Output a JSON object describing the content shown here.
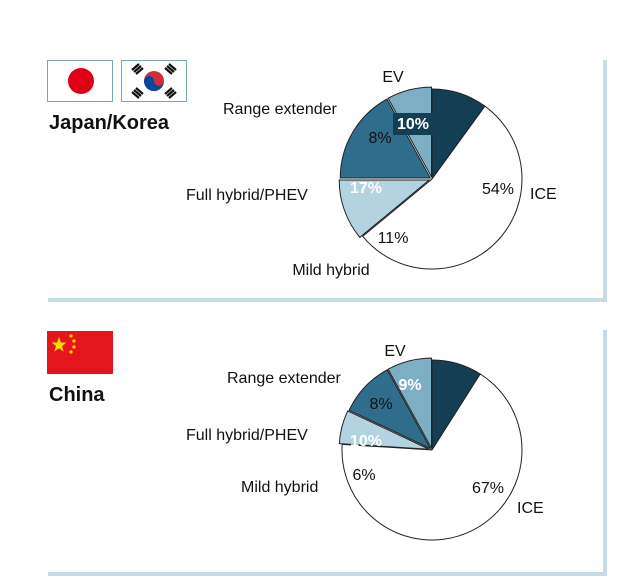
{
  "colors": {
    "ICE": "#ffffff",
    "Mild hybrid": "#b3d3e0",
    "Full hybrid/PHEV": "#2f6d8c",
    "Range extender": "#7eaec4",
    "EV": "#133e54",
    "frame": "#c5dbe6"
  },
  "chart_data": [
    {
      "type": "pie",
      "region": "Japan/Korea",
      "flags": [
        "japan-flag-icon",
        "korea-flag-icon"
      ],
      "slices": [
        {
          "label": "EV",
          "value": 10,
          "pct_label": "10%"
        },
        {
          "label": "ICE",
          "value": 54,
          "pct_label": "54%"
        },
        {
          "label": "Mild hybrid",
          "value": 11,
          "pct_label": "11%"
        },
        {
          "label": "Full hybrid/PHEV",
          "value": 17,
          "pct_label": "17%"
        },
        {
          "label": "Range extender",
          "value": 8,
          "pct_label": "8%"
        }
      ]
    },
    {
      "type": "pie",
      "region": "China",
      "flags": [
        "china-flag-icon"
      ],
      "slices": [
        {
          "label": "EV",
          "value": 9,
          "pct_label": "9%"
        },
        {
          "label": "ICE",
          "value": 67,
          "pct_label": "67%"
        },
        {
          "label": "Mild hybrid",
          "value": 6,
          "pct_label": "6%"
        },
        {
          "label": "Full hybrid/PHEV",
          "value": 10,
          "pct_label": "10%"
        },
        {
          "label": "Range extender",
          "value": 8,
          "pct_label": "8%"
        }
      ]
    }
  ]
}
